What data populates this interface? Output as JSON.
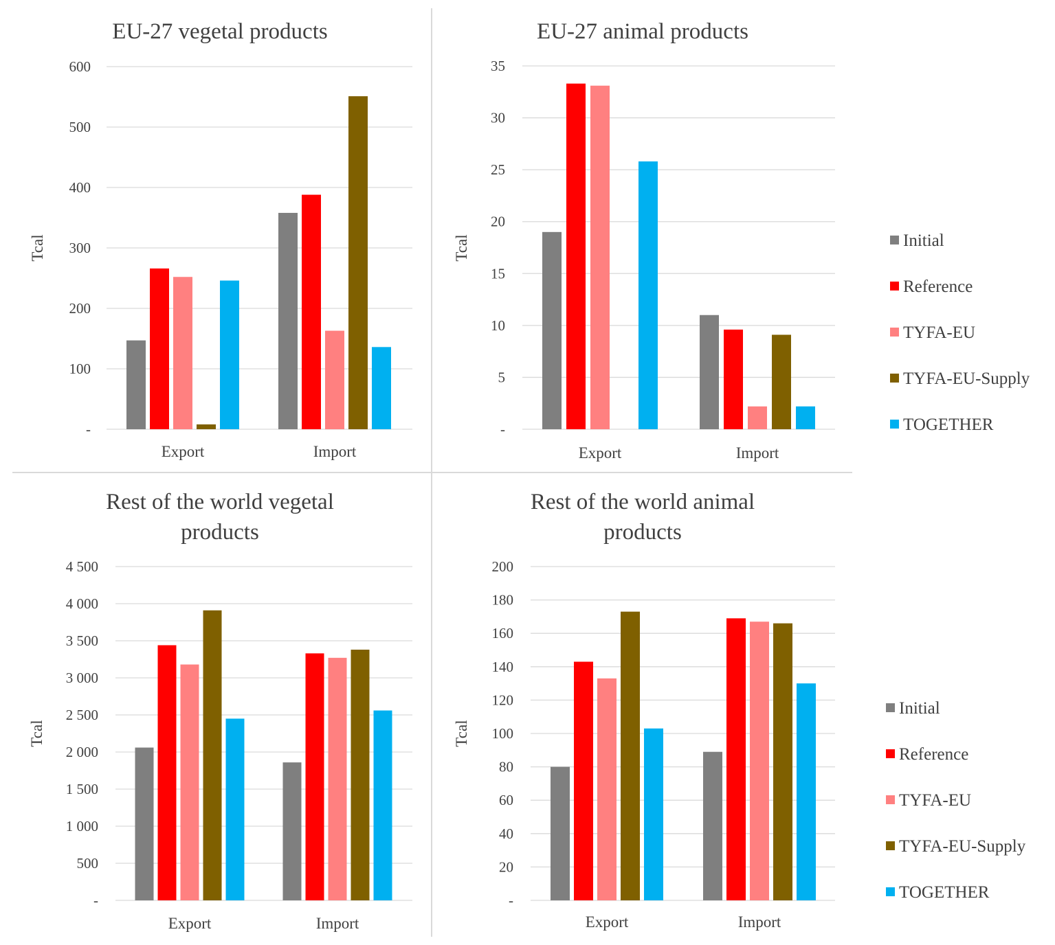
{
  "colors": {
    "Initial": "#7f7f7f",
    "Reference": "#ff0000",
    "TYFA-EU": "#ff8080",
    "TYFA-EU-Supply": "#7f6000",
    "TOGETHER": "#00b0f0",
    "grid": "#d9d9d9",
    "text": "#404040"
  },
  "legends": [
    {
      "items": [
        "Initial",
        "Reference",
        "TYFA-EU",
        "TYFA-EU-Supply",
        "TOGETHER"
      ]
    },
    {
      "items": [
        "Initial",
        "Reference",
        "TYFA-EU",
        "TYFA-EU-Supply",
        "TOGETHER"
      ]
    }
  ],
  "chart_data": [
    {
      "type": "bar",
      "title": "EU-27 vegetal products",
      "title_lines": [
        "EU-27 vegetal products"
      ],
      "ylabel": "Tcal",
      "xlabel": "",
      "categories": [
        "Export",
        "Import"
      ],
      "ylim": [
        0,
        600
      ],
      "yticks": [
        0,
        100,
        200,
        300,
        400,
        500,
        600
      ],
      "ytick_labels": [
        "-",
        "100",
        "200",
        "300",
        "400",
        "500",
        "600"
      ],
      "series": [
        {
          "name": "Initial",
          "values": [
            147,
            358
          ]
        },
        {
          "name": "Reference",
          "values": [
            266,
            388
          ]
        },
        {
          "name": "TYFA-EU",
          "values": [
            252,
            163
          ]
        },
        {
          "name": "TYFA-EU-Supply",
          "values": [
            8,
            551
          ]
        },
        {
          "name": "TOGETHER",
          "values": [
            246,
            136
          ]
        }
      ]
    },
    {
      "type": "bar",
      "title": "EU-27 animal products",
      "title_lines": [
        "EU-27 animal products"
      ],
      "ylabel": "Tcal",
      "xlabel": "",
      "categories": [
        "Export",
        "Import"
      ],
      "ylim": [
        0,
        35
      ],
      "yticks": [
        0,
        5,
        10,
        15,
        20,
        25,
        30,
        35
      ],
      "ytick_labels": [
        "-",
        "5",
        "10",
        "15",
        "20",
        "25",
        "30",
        "35"
      ],
      "series": [
        {
          "name": "Initial",
          "values": [
            19,
            11
          ]
        },
        {
          "name": "Reference",
          "values": [
            33.3,
            9.6
          ]
        },
        {
          "name": "TYFA-EU",
          "values": [
            33.1,
            2.2
          ]
        },
        {
          "name": "TYFA-EU-Supply",
          "values": [
            0,
            9.1
          ]
        },
        {
          "name": "TOGETHER",
          "values": [
            25.8,
            2.2
          ]
        }
      ]
    },
    {
      "type": "bar",
      "title": "Rest of the world vegetal products",
      "title_lines": [
        "Rest of the world vegetal",
        "products"
      ],
      "ylabel": "Tcal",
      "xlabel": "",
      "categories": [
        "Export",
        "Import"
      ],
      "ylim": [
        0,
        4500
      ],
      "yticks": [
        0,
        500,
        1000,
        1500,
        2000,
        2500,
        3000,
        3500,
        4000,
        4500
      ],
      "ytick_labels": [
        "-",
        "500",
        "1 000",
        "1 500",
        "2 000",
        "2 500",
        "3 000",
        "3 500",
        "4 000",
        "4 500"
      ],
      "series": [
        {
          "name": "Initial",
          "values": [
            2060,
            1860
          ]
        },
        {
          "name": "Reference",
          "values": [
            3440,
            3330
          ]
        },
        {
          "name": "TYFA-EU",
          "values": [
            3180,
            3270
          ]
        },
        {
          "name": "TYFA-EU-Supply",
          "values": [
            3910,
            3380
          ]
        },
        {
          "name": "TOGETHER",
          "values": [
            2450,
            2560
          ]
        }
      ]
    },
    {
      "type": "bar",
      "title": "Rest of the world animal products",
      "title_lines": [
        "Rest of the world animal",
        "products"
      ],
      "ylabel": "Tcal",
      "xlabel": "",
      "categories": [
        "Export",
        "Import"
      ],
      "ylim": [
        0,
        200
      ],
      "yticks": [
        0,
        20,
        40,
        60,
        80,
        100,
        120,
        140,
        160,
        180,
        200
      ],
      "ytick_labels": [
        "-",
        "20",
        "40",
        "60",
        "80",
        "100",
        "120",
        "140",
        "160",
        "180",
        "200"
      ],
      "series": [
        {
          "name": "Initial",
          "values": [
            80,
            89
          ]
        },
        {
          "name": "Reference",
          "values": [
            143,
            169
          ]
        },
        {
          "name": "TYFA-EU",
          "values": [
            133,
            167
          ]
        },
        {
          "name": "TYFA-EU-Supply",
          "values": [
            173,
            166
          ]
        },
        {
          "name": "TOGETHER",
          "values": [
            103,
            130
          ]
        }
      ]
    }
  ]
}
